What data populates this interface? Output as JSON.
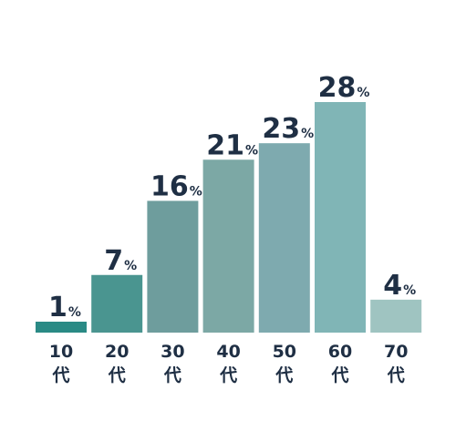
{
  "chart_data": {
    "type": "bar",
    "categories": [
      {
        "num": "10",
        "unit": "代"
      },
      {
        "num": "20",
        "unit": "代"
      },
      {
        "num": "30",
        "unit": "代"
      },
      {
        "num": "40",
        "unit": "代"
      },
      {
        "num": "50",
        "unit": "代"
      },
      {
        "num": "60",
        "unit": "代"
      },
      {
        "num": "70",
        "unit": "代"
      }
    ],
    "values": [
      1,
      7,
      16,
      21,
      23,
      28,
      4
    ],
    "value_suffix": "%",
    "colors": [
      "#2a8a85",
      "#4a9590",
      "#6e9d9d",
      "#7ca8a5",
      "#7eaaaf",
      "#80b5b6",
      "#9fc4c1"
    ],
    "ylim": [
      0,
      28
    ]
  }
}
